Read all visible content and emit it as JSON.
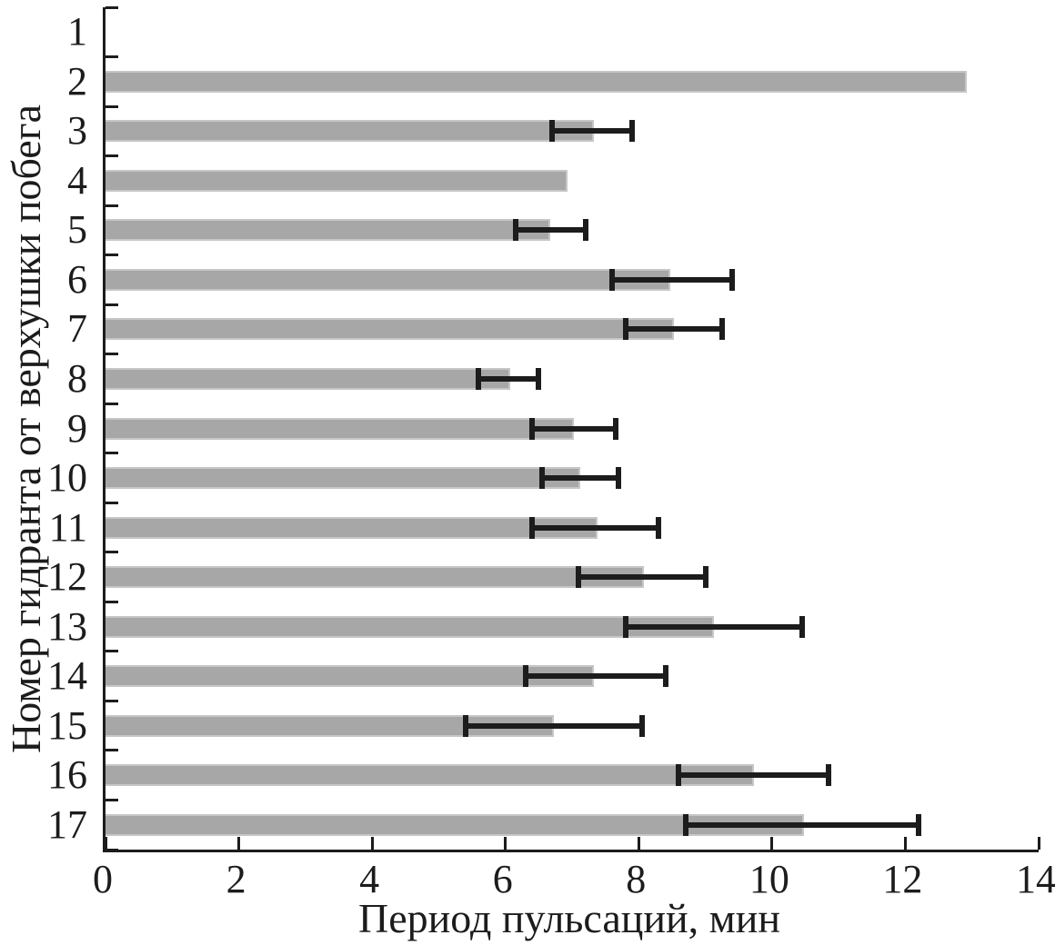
{
  "figure": {
    "background": "#ffffff"
  },
  "chart_data": {
    "type": "bar",
    "orientation": "horizontal",
    "title": "",
    "xlabel": "Период пульсаций, мин",
    "ylabel": "Номер гидранта от верхушки побега",
    "xlim": [
      0,
      14
    ],
    "xticks": [
      0,
      2,
      4,
      6,
      8,
      10,
      12,
      14
    ],
    "categories": [
      "1",
      "2",
      "3",
      "4",
      "5",
      "6",
      "7",
      "8",
      "9",
      "10",
      "11",
      "12",
      "13",
      "14",
      "15",
      "16",
      "17"
    ],
    "values": [
      0,
      12.9,
      7.3,
      6.9,
      6.65,
      8.45,
      8.5,
      6.05,
      7.0,
      7.1,
      7.35,
      8.05,
      9.1,
      7.3,
      6.7,
      9.7,
      10.45
    ],
    "error_low": [
      null,
      null,
      6.7,
      null,
      6.15,
      7.6,
      7.8,
      5.6,
      6.4,
      6.55,
      6.4,
      7.1,
      7.8,
      6.3,
      5.4,
      8.6,
      8.7
    ],
    "error_high": [
      null,
      null,
      7.9,
      null,
      7.2,
      9.4,
      9.25,
      6.5,
      7.65,
      7.7,
      8.3,
      9.0,
      10.45,
      8.4,
      8.05,
      10.85,
      12.2
    ],
    "grid": false,
    "legend": null,
    "colors": {
      "bar_fill": "#a7a7a7",
      "bar_edge": "#c6c6c6",
      "error_bar": "#1c1c1c",
      "axis": "#1c1c1c",
      "text": "#1c1c1c"
    }
  }
}
